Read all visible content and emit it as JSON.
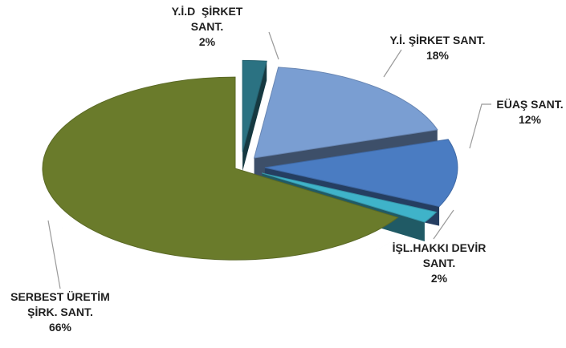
{
  "chart_data": {
    "type": "pie",
    "categories": [
      "Y.İ.D  ŞİRKET SANT.",
      "Y.İ. ŞİRKET SANT.",
      "EÜAŞ SANT.",
      "İŞL.HAKKI DEVİR SANT.",
      "SERBEST ÜRETİM ŞİRK. SANT."
    ],
    "values": [
      2,
      18,
      12,
      2,
      66
    ],
    "value_labels": [
      "2%",
      "18%",
      "12%",
      "2%",
      "66%"
    ],
    "colors": [
      "#2b7282",
      "#7a9ed2",
      "#4a7cc2",
      "#3fb3c9",
      "#6a7b2b"
    ]
  }
}
